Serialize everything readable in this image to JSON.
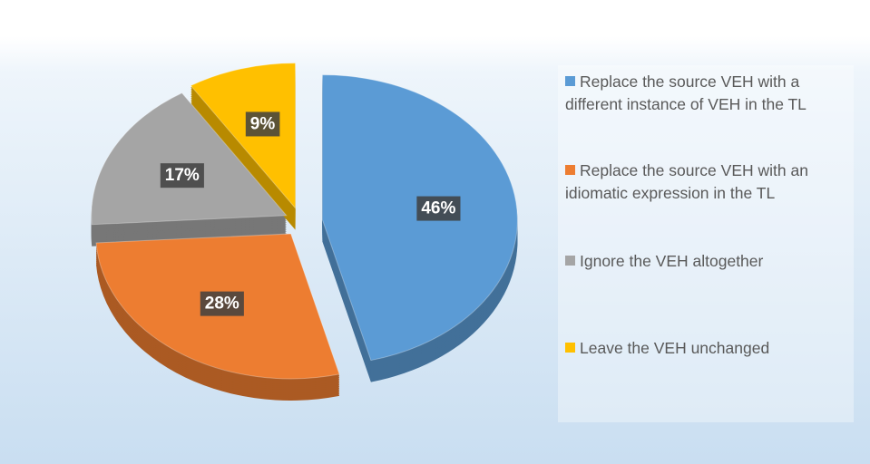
{
  "chart_data": {
    "type": "pie",
    "categories": [
      "Replace the source VEH with a different instance of VEH in the TL",
      "Replace the source VEH with an idiomatic expression in the TL",
      "Ignore the VEH altogether",
      "Leave the VEH unchanged"
    ],
    "values": [
      46,
      28,
      17,
      9
    ],
    "value_labels": [
      "46%",
      "28%",
      "17%",
      "9%"
    ],
    "colors": [
      "#5b9bd5",
      "#ed7d31",
      "#a5a5a5",
      "#ffc000"
    ],
    "legend": "right"
  }
}
